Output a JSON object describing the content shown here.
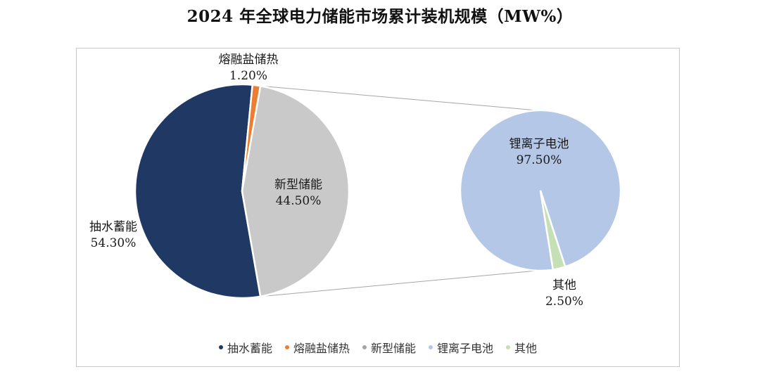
{
  "title": "2024 年全球电力储能市场累计装机规模（MW%）",
  "chart_data": [
    {
      "type": "pie",
      "title": "2024 年全球电力储能市场累计装机规模（MW%）",
      "slices": [
        {
          "name": "抽水蓄能",
          "value": 54.3,
          "label": "54.30%",
          "color": "#203864"
        },
        {
          "name": "熔融盐储热",
          "value": 1.2,
          "label": "1.20%",
          "color": "#ED7D31"
        },
        {
          "name": "新型储能",
          "value": 44.5,
          "label": "44.50%",
          "color": "#C9C9C9"
        }
      ]
    },
    {
      "type": "pie",
      "breakdown_of": "新型储能",
      "slices": [
        {
          "name": "锂离子电池",
          "value": 97.5,
          "label": "97.50%",
          "color": "#B4C7E7"
        },
        {
          "name": "其他",
          "value": 2.5,
          "label": "2.50%",
          "color": "#C5E0B4"
        }
      ]
    }
  ],
  "legend": [
    {
      "name": "抽水蓄能",
      "color": "#203864"
    },
    {
      "name": "熔融盐储热",
      "color": "#ED7D31"
    },
    {
      "name": "新型储能",
      "color": "#A5A5A5"
    },
    {
      "name": "锂离子电池",
      "color": "#B4C7E7"
    },
    {
      "name": "其他",
      "color": "#C5E0B4"
    }
  ]
}
